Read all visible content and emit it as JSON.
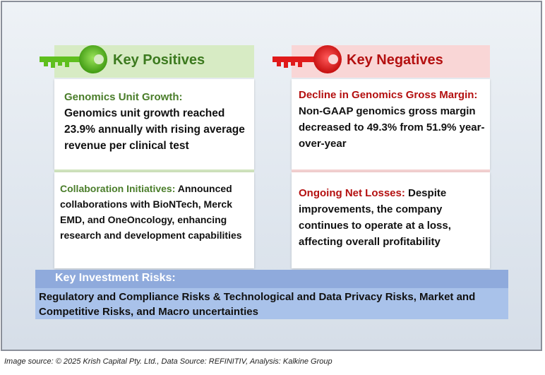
{
  "positives": {
    "title": "Key Positives",
    "item1_heading": "Genomics Unit Growth:",
    "item1_body": "Genomics unit growth reached 23.9% annually with rising average revenue per clinical test",
    "item2_heading": "Collaboration Initiatives:",
    "item2_body": " Announced collaborations with BioNTech, Merck EMD, and OneOncology, enhancing research and development capabilities"
  },
  "negatives": {
    "title": "Key Negatives",
    "item1_heading": "Decline in Genomics Gross Margin:",
    "item1_body": "Non-GAAP genomics gross margin decreased to 49.3% from 51.9% year-over-year",
    "item2_heading": "Ongoing Net Losses:",
    "item2_body": " Despite improvements, the company continues to operate at a loss, affecting overall profitability"
  },
  "risks": {
    "title": "Key Investment Risks:",
    "body": "Regulatory and Compliance Risks & Technological and Data Privacy Risks, Market and Competitive Risks, and Macro uncertainties"
  },
  "caption": "Image source: © 2025 Krish Capital Pty. Ltd., Data Source: REFINITIV, Analysis: Kalkine Group",
  "colors": {
    "positive": "#4a7d2a",
    "negative": "#b41010",
    "risk_band": "#8faadc"
  },
  "icons": {
    "positive_icon": "green-key-icon",
    "negative_icon": "red-key-icon"
  }
}
